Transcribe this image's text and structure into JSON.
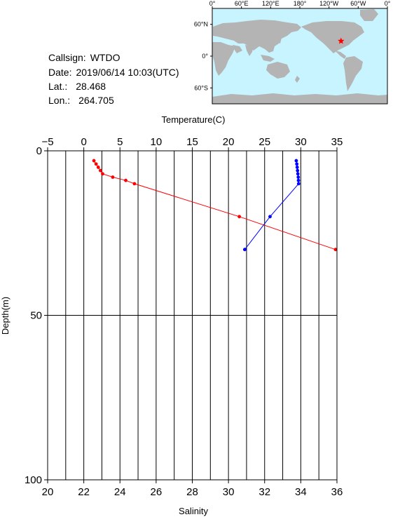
{
  "station": {
    "callsign_label": "Callsign:",
    "callsign": "WTDO",
    "date_label": "Date:",
    "date": "2019/06/14 10:03(UTC)",
    "lat_label": "Lat.:",
    "lat": "28.468",
    "lon_label": "Lon.:",
    "lon": "264.705"
  },
  "map": {
    "lon_ticks": [
      "0°",
      "60°E",
      "120°E",
      "180°",
      "120°W",
      "60°W",
      "0°"
    ],
    "lat_ticks": [
      "60°N",
      "0°",
      "60°S"
    ],
    "ocean_color": "#c8f4ff",
    "land_color": "#b4b4b4",
    "marker": {
      "lat": 28.468,
      "lon": 264.705,
      "color": "#ff0000",
      "symbol": "star"
    }
  },
  "chart_data": {
    "type": "line",
    "top_axis": {
      "label": "Temperature(C)",
      "range": [
        -5,
        35
      ],
      "ticks": [
        "−5",
        "0",
        "5",
        "10",
        "15",
        "20",
        "25",
        "30",
        "35"
      ]
    },
    "bottom_axis": {
      "label": "Salinity",
      "range": [
        20,
        36
      ],
      "ticks": [
        "20",
        "22",
        "24",
        "26",
        "28",
        "30",
        "32",
        "34",
        "36"
      ]
    },
    "y_axis": {
      "label": "Depth(m)",
      "range": [
        0,
        100
      ],
      "inverted": true,
      "ticks": [
        "0",
        "50",
        "100"
      ]
    },
    "grid": true,
    "series": [
      {
        "quantity": "Temperature",
        "axis": "top",
        "color": "#ff0000",
        "points": [
          {
            "x": 1.4,
            "depth": 3
          },
          {
            "x": 1.7,
            "depth": 4
          },
          {
            "x": 2.0,
            "depth": 5
          },
          {
            "x": 2.3,
            "depth": 6
          },
          {
            "x": 2.6,
            "depth": 7
          },
          {
            "x": 4.0,
            "depth": 8
          },
          {
            "x": 5.8,
            "depth": 9
          },
          {
            "x": 7.0,
            "depth": 10
          },
          {
            "x": 21.5,
            "depth": 20
          },
          {
            "x": 34.8,
            "depth": 30
          }
        ]
      },
      {
        "quantity": "Salinity",
        "axis": "bottom",
        "color": "#0000ff",
        "points": [
          {
            "x": 33.75,
            "depth": 3
          },
          {
            "x": 33.78,
            "depth": 4
          },
          {
            "x": 33.8,
            "depth": 5
          },
          {
            "x": 33.82,
            "depth": 6
          },
          {
            "x": 33.84,
            "depth": 7
          },
          {
            "x": 33.86,
            "depth": 8
          },
          {
            "x": 33.87,
            "depth": 9
          },
          {
            "x": 33.88,
            "depth": 10
          },
          {
            "x": 32.3,
            "depth": 20
          },
          {
            "x": 30.9,
            "depth": 30
          }
        ]
      }
    ]
  }
}
